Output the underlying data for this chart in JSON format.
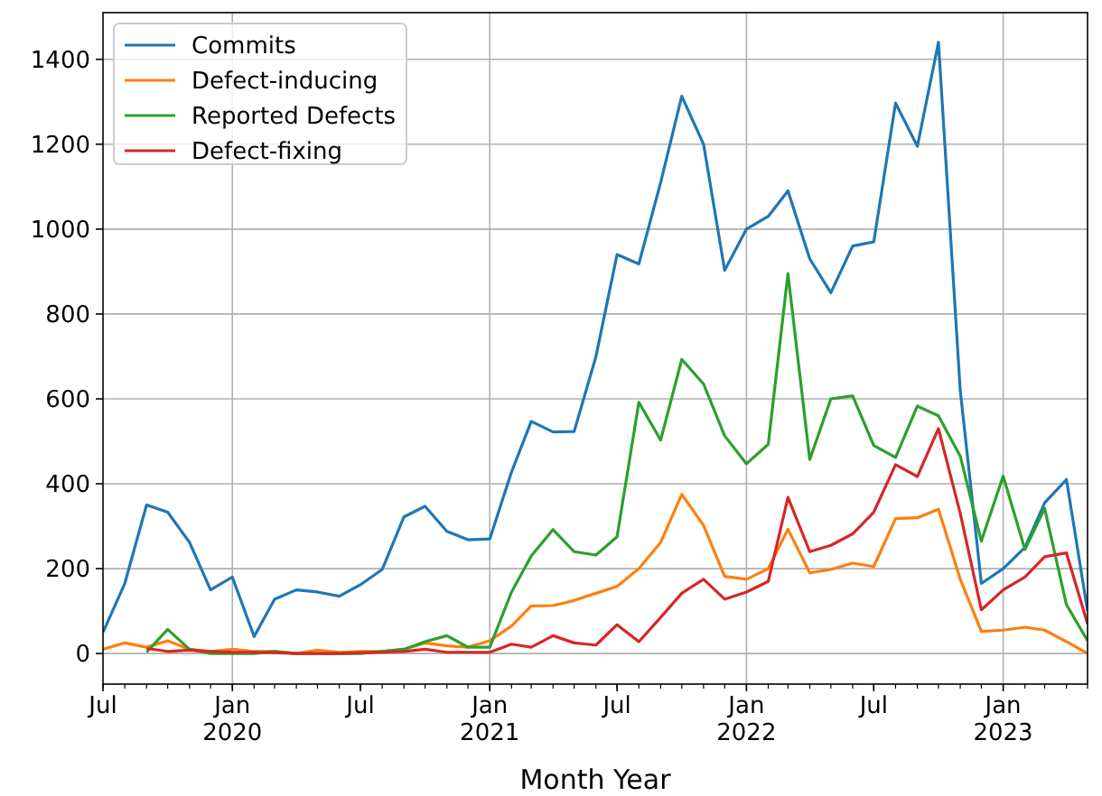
{
  "chart_data": {
    "type": "line",
    "xlabel": "Month Year",
    "x": [
      "2019-07",
      "2019-08",
      "2019-09",
      "2019-10",
      "2019-11",
      "2019-12",
      "2020-01",
      "2020-02",
      "2020-03",
      "2020-04",
      "2020-05",
      "2020-06",
      "2020-07",
      "2020-08",
      "2020-09",
      "2020-10",
      "2020-11",
      "2020-12",
      "2021-01",
      "2021-02",
      "2021-03",
      "2021-04",
      "2021-05",
      "2021-06",
      "2021-07",
      "2021-08",
      "2021-09",
      "2021-10",
      "2021-11",
      "2021-12",
      "2022-01",
      "2022-02",
      "2022-03",
      "2022-04",
      "2022-05",
      "2022-06",
      "2022-07",
      "2022-08",
      "2022-09",
      "2022-10",
      "2022-11",
      "2022-12",
      "2023-01",
      "2023-02",
      "2023-03",
      "2023-04",
      "2023-05"
    ],
    "series": [
      {
        "name": "Commits",
        "color": "#1f77b4",
        "values": [
          50,
          165,
          350,
          333,
          262,
          150,
          180,
          40,
          128,
          150,
          145,
          135,
          162,
          198,
          322,
          347,
          288,
          268,
          270,
          428,
          547,
          522,
          523,
          700,
          940,
          918,
          1110,
          1313,
          1200,
          903,
          1000,
          1030,
          1090,
          930,
          850,
          960,
          970,
          1297,
          1195,
          1440,
          620,
          165,
          200,
          250,
          355,
          410,
          100
        ]
      },
      {
        "name": "Defect-inducing",
        "color": "#ff7f0e",
        "values": [
          10,
          25,
          15,
          30,
          10,
          5,
          10,
          5,
          5,
          0,
          8,
          3,
          5,
          5,
          10,
          25,
          18,
          15,
          30,
          65,
          112,
          113,
          125,
          142,
          158,
          200,
          262,
          375,
          302,
          182,
          175,
          200,
          293,
          190,
          198,
          213,
          205,
          318,
          320,
          340,
          175,
          52,
          55,
          62,
          55,
          28,
          0
        ]
      },
      {
        "name": "Reported Defects",
        "color": "#2ca02c",
        "values": [
          null,
          null,
          3,
          57,
          10,
          0,
          0,
          0,
          5,
          0,
          0,
          0,
          0,
          5,
          10,
          28,
          42,
          15,
          15,
          145,
          230,
          292,
          240,
          232,
          275,
          592,
          503,
          693,
          635,
          513,
          447,
          493,
          895,
          457,
          600,
          607,
          490,
          462,
          583,
          560,
          465,
          265,
          418,
          245,
          342,
          115,
          30
        ]
      },
      {
        "name": "Defect-fixing",
        "color": "#d62728",
        "values": [
          null,
          null,
          12,
          5,
          8,
          5,
          3,
          3,
          2,
          0,
          0,
          0,
          2,
          3,
          5,
          10,
          3,
          3,
          3,
          22,
          15,
          42,
          25,
          20,
          68,
          28,
          85,
          142,
          175,
          128,
          145,
          170,
          368,
          240,
          255,
          282,
          333,
          445,
          417,
          530,
          330,
          103,
          150,
          180,
          228,
          237,
          70
        ]
      }
    ],
    "xlim": [
      "2019-07",
      "2023-05"
    ],
    "xticks": [
      {
        "value": "2019-07",
        "label": "Jul"
      },
      {
        "value": "2020-01",
        "label": "Jan\n2020"
      },
      {
        "value": "2020-07",
        "label": "Jul"
      },
      {
        "value": "2021-01",
        "label": "Jan\n2021"
      },
      {
        "value": "2021-07",
        "label": "Jul"
      },
      {
        "value": "2022-01",
        "label": "Jan\n2022"
      },
      {
        "value": "2022-07",
        "label": "Jul"
      },
      {
        "value": "2023-01",
        "label": "Jan\n2023"
      }
    ],
    "ylim": [
      -72,
      1510
    ],
    "yticks": [
      0,
      200,
      400,
      600,
      800,
      1000,
      1200,
      1400
    ],
    "grid": true,
    "legend": "top left",
    "line_style": "solid"
  }
}
